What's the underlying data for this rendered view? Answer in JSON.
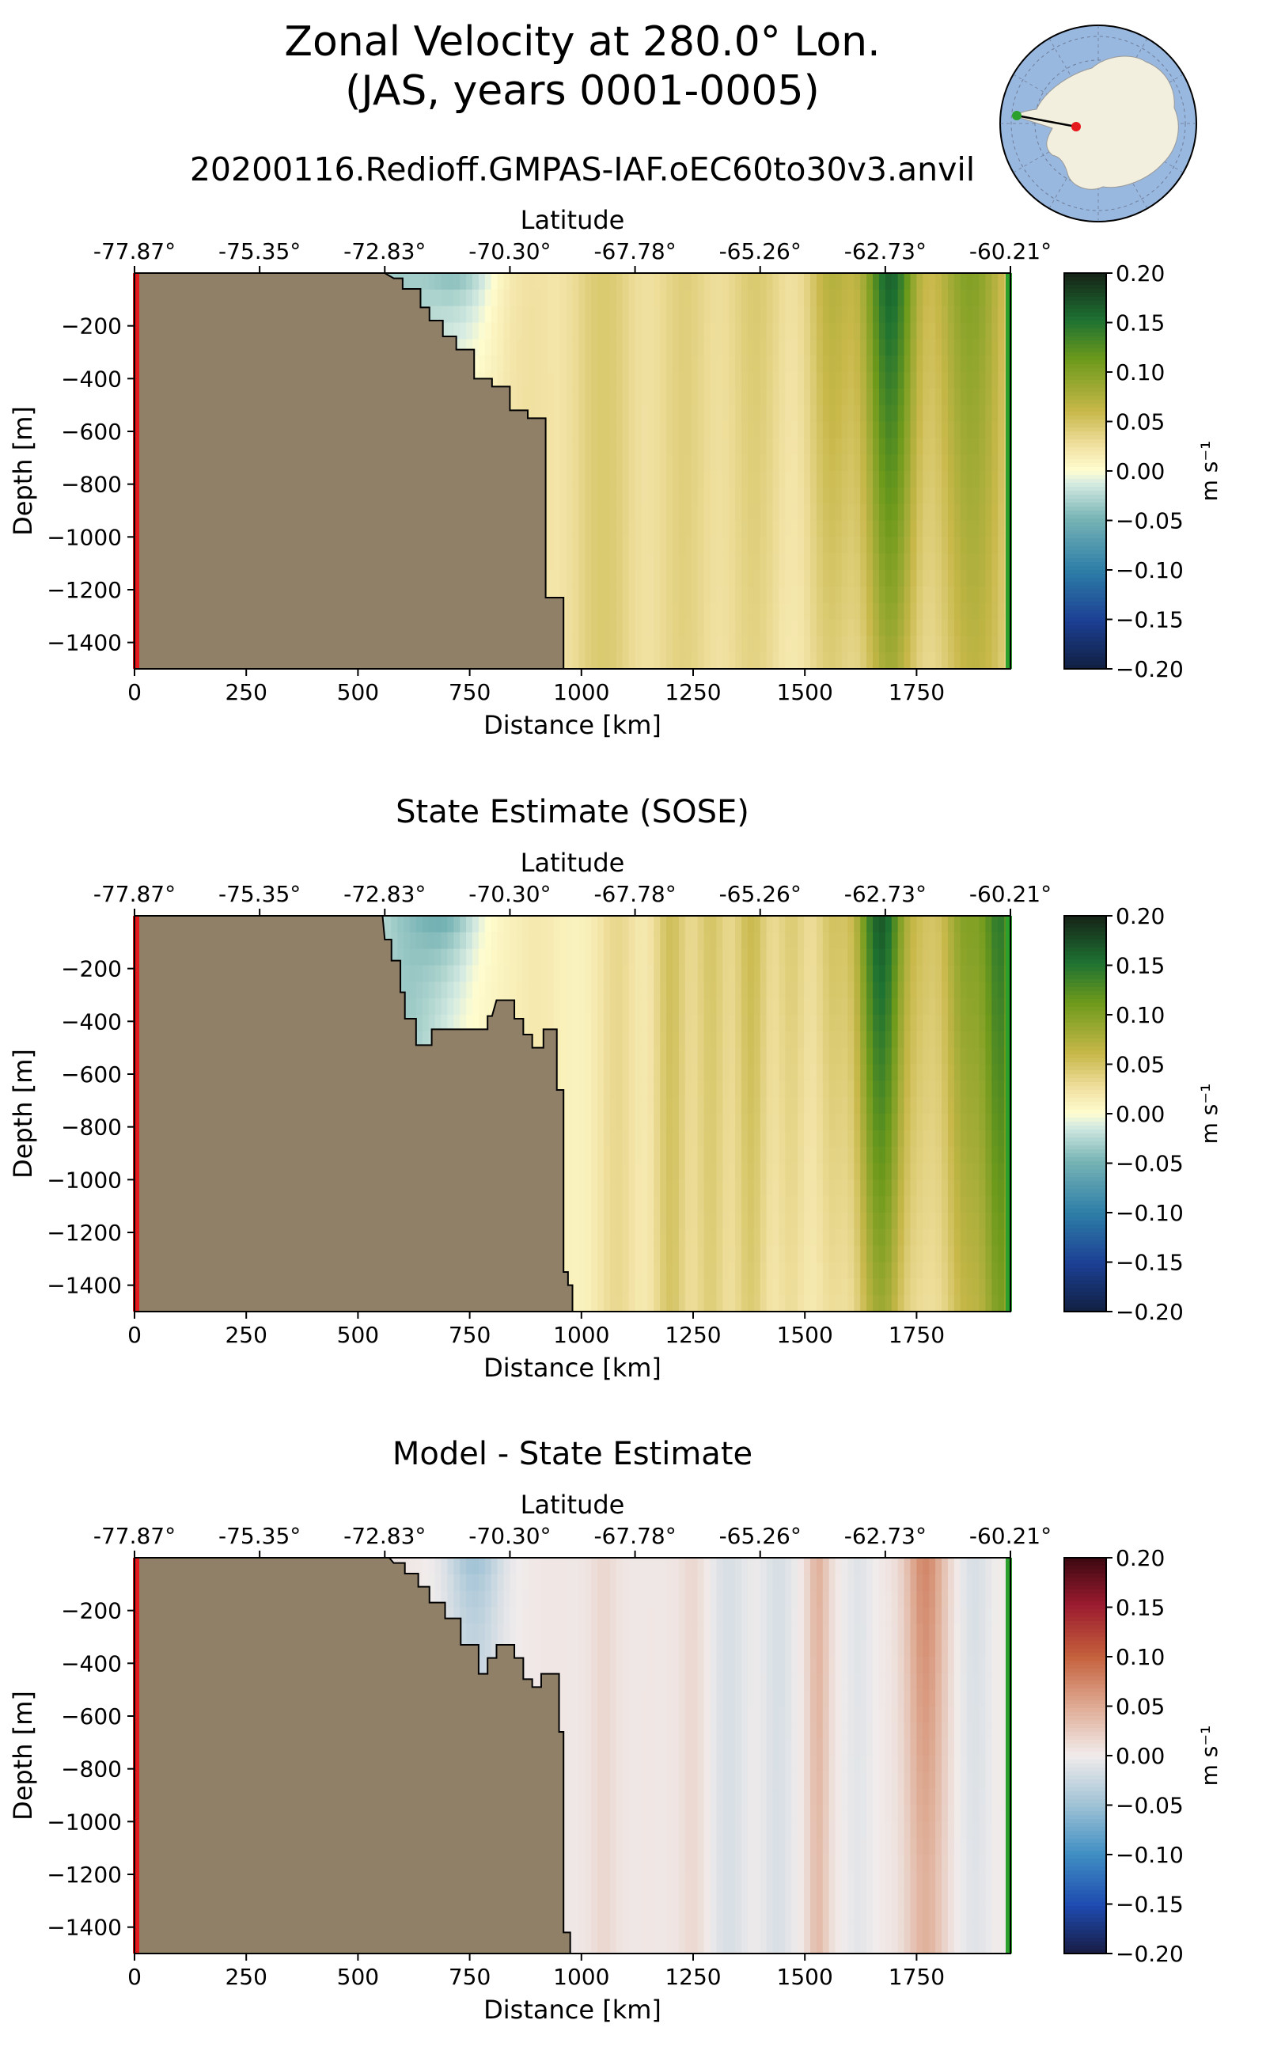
{
  "title_line1": "Zonal Velocity at 280.0° Lon.",
  "title_line2": "(JAS, years 0001-0005)",
  "run_name": "20200116.Redioff.GMPAS-IAF.oEC60to30v3.anvil",
  "inset_map": {
    "icon": "antarctica-polar-stereo-map-icon",
    "land_color": "#f2efde",
    "ocean_color": "#98b8e0",
    "start_marker_color": "#e41a1c",
    "end_marker_color": "#2ca02c"
  },
  "colors": {
    "land": "#8f8067",
    "start_line": "#e41a1c",
    "end_line": "#2ca02c"
  },
  "chart_data": [
    {
      "type": "heatmap",
      "title": "",
      "xlabel": "Distance [km]",
      "ylabel": "Depth [m]",
      "top_xlabel": "Latitude",
      "xlim": [
        0,
        1960
      ],
      "ylim": [
        -1500,
        0
      ],
      "x_ticks": [
        0,
        250,
        500,
        750,
        1000,
        1250,
        1500,
        1750
      ],
      "x_tick_labels": [
        "0",
        "250",
        "500",
        "750",
        "1000",
        "1250",
        "1500",
        "1750"
      ],
      "y_ticks": [
        -200,
        -400,
        -600,
        -800,
        -1000,
        -1200,
        -1400
      ],
      "y_tick_labels": [
        "−200",
        "−400",
        "−600",
        "−800",
        "−1000",
        "−1200",
        "−1400"
      ],
      "lat_ticks": [
        0,
        280,
        560,
        840,
        1120,
        1400,
        1680,
        1960
      ],
      "lat_tick_labels": [
        "-77.87°",
        "-75.35°",
        "-72.83°",
        "-70.30°",
        "-67.78°",
        "-65.26°",
        "-62.73°",
        "-60.21°"
      ],
      "colormap": "delta",
      "colorbar": {
        "vmin": -0.2,
        "vmax": 0.2,
        "ticks": [
          0.2,
          0.15,
          0.1,
          0.05,
          0.0,
          -0.05,
          -0.1,
          -0.15,
          -0.2
        ],
        "tick_labels": [
          "0.20",
          "0.15",
          "0.10",
          "0.05",
          "0.00",
          "−0.05",
          "−0.10",
          "−0.15",
          "−0.20"
        ],
        "label": "m s⁻¹"
      },
      "bathymetry": [
        [
          0,
          0
        ],
        [
          560,
          0
        ],
        [
          580,
          -20
        ],
        [
          600,
          -20
        ],
        [
          600,
          -60
        ],
        [
          640,
          -60
        ],
        [
          640,
          -130
        ],
        [
          660,
          -130
        ],
        [
          660,
          -180
        ],
        [
          690,
          -180
        ],
        [
          690,
          -240
        ],
        [
          720,
          -240
        ],
        [
          720,
          -290
        ],
        [
          760,
          -290
        ],
        [
          760,
          -400
        ],
        [
          800,
          -400
        ],
        [
          800,
          -430
        ],
        [
          840,
          -430
        ],
        [
          840,
          -520
        ],
        [
          880,
          -520
        ],
        [
          880,
          -550
        ],
        [
          920,
          -550
        ],
        [
          920,
          -1230
        ],
        [
          960,
          -1230
        ],
        [
          960,
          -1500
        ],
        [
          0,
          -1500
        ]
      ],
      "field": {
        "bands": [
          [
            580,
            -0.04,
            90
          ],
          [
            880,
            0.015,
            70
          ],
          [
            1050,
            0.035,
            80
          ],
          [
            1230,
            0.03,
            70
          ],
          [
            1390,
            0.035,
            70
          ],
          [
            1560,
            0.06,
            60
          ],
          [
            1690,
            0.15,
            60
          ],
          [
            1870,
            0.09,
            90
          ]
        ],
        "base": 0.01,
        "coastal_band": [
          720,
          -0.05,
          80
        ],
        "depth_falloff": [
          [
            1690,
            0.5,
            300
          ]
        ]
      }
    },
    {
      "type": "heatmap",
      "title": "State Estimate (SOSE)",
      "xlabel": "Distance [km]",
      "ylabel": "Depth [m]",
      "top_xlabel": "Latitude",
      "xlim": [
        0,
        1960
      ],
      "ylim": [
        -1500,
        0
      ],
      "x_ticks": [
        0,
        250,
        500,
        750,
        1000,
        1250,
        1500,
        1750
      ],
      "x_tick_labels": [
        "0",
        "250",
        "500",
        "750",
        "1000",
        "1250",
        "1500",
        "1750"
      ],
      "y_ticks": [
        -200,
        -400,
        -600,
        -800,
        -1000,
        -1200,
        -1400
      ],
      "y_tick_labels": [
        "−200",
        "−400",
        "−600",
        "−800",
        "−1000",
        "−1200",
        "−1400"
      ],
      "lat_ticks": [
        0,
        280,
        560,
        840,
        1120,
        1400,
        1680,
        1960
      ],
      "lat_tick_labels": [
        "-77.87°",
        "-75.35°",
        "-72.83°",
        "-70.30°",
        "-67.78°",
        "-65.26°",
        "-62.73°",
        "-60.21°"
      ],
      "colormap": "delta",
      "colorbar": {
        "vmin": -0.2,
        "vmax": 0.2,
        "ticks": [
          0.2,
          0.15,
          0.1,
          0.05,
          0.0,
          -0.05,
          -0.1,
          -0.15,
          -0.2
        ],
        "tick_labels": [
          "0.20",
          "0.15",
          "0.10",
          "0.05",
          "0.00",
          "−0.05",
          "−0.10",
          "−0.15",
          "−0.20"
        ],
        "label": "m s⁻¹"
      },
      "bathymetry": [
        [
          0,
          0
        ],
        [
          555,
          0
        ],
        [
          560,
          -90
        ],
        [
          575,
          -90
        ],
        [
          575,
          -170
        ],
        [
          595,
          -170
        ],
        [
          595,
          -290
        ],
        [
          605,
          -290
        ],
        [
          605,
          -390
        ],
        [
          630,
          -390
        ],
        [
          630,
          -490
        ],
        [
          665,
          -490
        ],
        [
          665,
          -430
        ],
        [
          790,
          -430
        ],
        [
          790,
          -380
        ],
        [
          800,
          -380
        ],
        [
          810,
          -320
        ],
        [
          850,
          -320
        ],
        [
          850,
          -390
        ],
        [
          870,
          -390
        ],
        [
          870,
          -450
        ],
        [
          890,
          -450
        ],
        [
          890,
          -500
        ],
        [
          915,
          -500
        ],
        [
          915,
          -430
        ],
        [
          945,
          -430
        ],
        [
          945,
          -660
        ],
        [
          960,
          -660
        ],
        [
          960,
          -1350
        ],
        [
          970,
          -1350
        ],
        [
          970,
          -1400
        ],
        [
          980,
          -1400
        ],
        [
          980,
          -1500
        ],
        [
          0,
          -1500
        ]
      ],
      "field": {
        "bands": [
          [
            600,
            -0.04,
            90
          ],
          [
            900,
            0.01,
            60
          ],
          [
            1080,
            0.025,
            50
          ],
          [
            1200,
            0.045,
            40
          ],
          [
            1290,
            0.04,
            40
          ],
          [
            1380,
            0.05,
            40
          ],
          [
            1470,
            0.035,
            40
          ],
          [
            1560,
            0.04,
            40
          ],
          [
            1670,
            0.16,
            55
          ],
          [
            1760,
            0.03,
            40
          ],
          [
            1860,
            0.09,
            60
          ],
          [
            1940,
            0.12,
            40
          ]
        ],
        "base": 0.008,
        "coastal_band": [
          700,
          -0.05,
          70
        ],
        "depth_falloff": [
          [
            1670,
            0.45,
            350
          ]
        ]
      }
    },
    {
      "type": "heatmap",
      "title": "Model - State Estimate",
      "xlabel": "Distance [km]",
      "ylabel": "Depth [m]",
      "top_xlabel": "Latitude",
      "xlim": [
        0,
        1960
      ],
      "ylim": [
        -1500,
        0
      ],
      "x_ticks": [
        0,
        250,
        500,
        750,
        1000,
        1250,
        1500,
        1750
      ],
      "x_tick_labels": [
        "0",
        "250",
        "500",
        "750",
        "1000",
        "1250",
        "1500",
        "1750"
      ],
      "y_ticks": [
        -200,
        -400,
        -600,
        -800,
        -1000,
        -1200,
        -1400
      ],
      "y_tick_labels": [
        "−200",
        "−400",
        "−600",
        "−800",
        "−1000",
        "−1200",
        "−1400"
      ],
      "lat_ticks": [
        0,
        280,
        560,
        840,
        1120,
        1400,
        1680,
        1960
      ],
      "lat_tick_labels": [
        "-77.87°",
        "-75.35°",
        "-72.83°",
        "-70.30°",
        "-67.78°",
        "-65.26°",
        "-62.73°",
        "-60.21°"
      ],
      "colormap": "balance",
      "colorbar": {
        "vmin": -0.2,
        "vmax": 0.2,
        "ticks": [
          0.2,
          0.15,
          0.1,
          0.05,
          0.0,
          -0.05,
          -0.1,
          -0.15,
          -0.2
        ],
        "tick_labels": [
          "0.20",
          "0.15",
          "0.10",
          "0.05",
          "0.00",
          "−0.05",
          "−0.10",
          "−0.15",
          "−0.20"
        ],
        "label": "m s⁻¹"
      },
      "bathymetry": [
        [
          0,
          0
        ],
        [
          570,
          0
        ],
        [
          580,
          -20
        ],
        [
          605,
          -20
        ],
        [
          605,
          -60
        ],
        [
          635,
          -60
        ],
        [
          635,
          -110
        ],
        [
          660,
          -110
        ],
        [
          660,
          -170
        ],
        [
          695,
          -170
        ],
        [
          695,
          -230
        ],
        [
          730,
          -230
        ],
        [
          730,
          -330
        ],
        [
          770,
          -330
        ],
        [
          770,
          -440
        ],
        [
          790,
          -440
        ],
        [
          790,
          -380
        ],
        [
          810,
          -380
        ],
        [
          810,
          -330
        ],
        [
          850,
          -330
        ],
        [
          850,
          -380
        ],
        [
          870,
          -380
        ],
        [
          870,
          -460
        ],
        [
          890,
          -460
        ],
        [
          890,
          -490
        ],
        [
          910,
          -490
        ],
        [
          910,
          -440
        ],
        [
          950,
          -440
        ],
        [
          950,
          -660
        ],
        [
          960,
          -660
        ],
        [
          960,
          -1420
        ],
        [
          975,
          -1420
        ],
        [
          975,
          -1500
        ],
        [
          0,
          -1500
        ]
      ],
      "field": {
        "bands": [
          [
            760,
            -0.025,
            70
          ],
          [
            1050,
            0.012,
            30
          ],
          [
            1250,
            0.012,
            30
          ],
          [
            1330,
            -0.02,
            45
          ],
          [
            1440,
            -0.02,
            40
          ],
          [
            1530,
            0.04,
            25
          ],
          [
            1620,
            -0.015,
            35
          ],
          [
            1770,
            0.07,
            45
          ],
          [
            1880,
            -0.02,
            40
          ]
        ],
        "base": 0.004,
        "coastal_band": [
          760,
          -0.03,
          60
        ],
        "depth_falloff": [
          [
            1770,
            0.6,
            250
          ]
        ]
      }
    }
  ]
}
